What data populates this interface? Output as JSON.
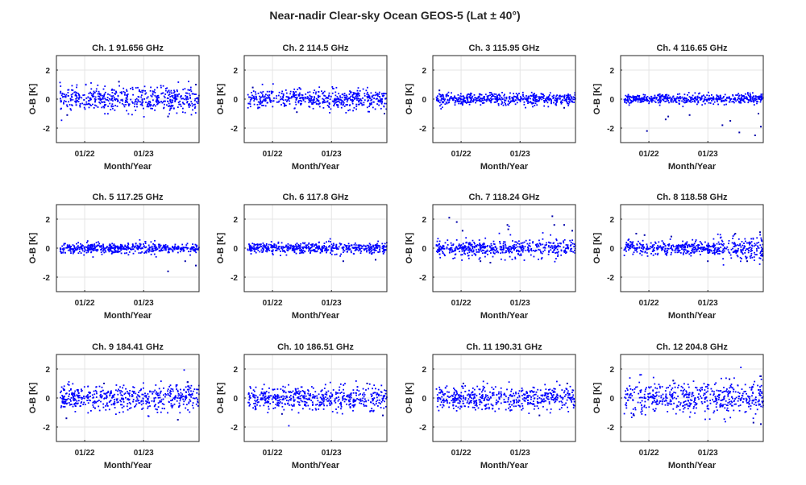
{
  "chart_data": {
    "type": "scatter",
    "title": "Near-nadir Clear-sky Ocean GEOS-5 (Lat ± 40°)",
    "layout": "3 rows x 4 columns",
    "marker_color": "#0000ff",
    "grid": true,
    "xlabel": "Month/Year",
    "ylabel": "O-B [K]",
    "xlim": [
      "2021-07-10",
      "2023-12-10"
    ],
    "ylim": [
      -3,
      3
    ],
    "xticks": [
      {
        "date": "2022-01-01",
        "label": "01/22"
      },
      {
        "date": "2023-01-01",
        "label": "01/23"
      }
    ],
    "yticks": [
      {
        "value": 2,
        "label": "2"
      },
      {
        "value": 0,
        "label": "0"
      },
      {
        "value": -2,
        "label": "-2"
      }
    ],
    "data_range": [
      "2021-08-01",
      "2023-12-10"
    ],
    "panels": [
      {
        "title": "Ch. 1 91.656 GHz",
        "std_K": 0.42,
        "mean_K": 0.0,
        "outliers": [
          [
            "2022-08-01",
            1.2
          ],
          [
            "2021-09-15",
            -1.1
          ],
          [
            "2023-06-01",
            -1.2
          ],
          [
            "2023-11-20",
            1.0
          ]
        ]
      },
      {
        "title": "Ch. 2 114.5 GHz",
        "std_K": 0.33,
        "mean_K": 0.0,
        "outliers": [
          [
            "2021-09-01",
            0.8
          ],
          [
            "2023-11-25",
            -1.0
          ],
          [
            "2022-06-01",
            -0.9
          ]
        ]
      },
      {
        "title": "Ch. 3 115.95 GHz",
        "std_K": 0.2,
        "mean_K": 0.0,
        "outliers": [
          [
            "2021-08-20",
            0.6
          ],
          [
            "2023-10-01",
            -0.6
          ]
        ]
      },
      {
        "title": "Ch. 4 116.65 GHz",
        "std_K": 0.17,
        "mean_K": 0.0,
        "outliers": [
          [
            "2021-12-20",
            -2.2
          ],
          [
            "2022-04-15",
            -1.4
          ],
          [
            "2022-05-01",
            -1.2
          ],
          [
            "2022-09-10",
            -1.1
          ],
          [
            "2023-04-01",
            -1.8
          ],
          [
            "2023-05-20",
            -1.5
          ],
          [
            "2023-07-15",
            -2.3
          ],
          [
            "2023-10-20",
            -2.5
          ],
          [
            "2023-11-25",
            -1.9
          ],
          [
            "2023-11-10",
            -1.0
          ]
        ]
      },
      {
        "title": "Ch. 5 117.25 GHz",
        "std_K": 0.18,
        "mean_K": 0.0,
        "outliers": [
          [
            "2023-06-01",
            -1.6
          ],
          [
            "2023-11-20",
            -1.2
          ],
          [
            "2023-09-15",
            -0.9
          ]
        ]
      },
      {
        "title": "Ch. 6 117.8 GHz",
        "std_K": 0.18,
        "mean_K": 0.0,
        "outliers": [
          [
            "2023-03-15",
            -0.9
          ],
          [
            "2023-10-01",
            -0.8
          ]
        ]
      },
      {
        "title": "Ch. 7 118.24 GHz",
        "std_K": 0.25,
        "mean_K": 0.0,
        "outliers": [
          [
            "2021-10-20",
            2.1
          ],
          [
            "2021-12-05",
            1.8
          ],
          [
            "2022-01-10",
            1.2
          ],
          [
            "2022-10-15",
            1.6
          ],
          [
            "2022-10-20",
            1.3
          ],
          [
            "2023-07-20",
            2.2
          ],
          [
            "2023-08-01",
            1.6
          ],
          [
            "2023-10-01",
            1.6
          ],
          [
            "2023-11-20",
            1.2
          ],
          [
            "2022-07-01",
            -1.0
          ],
          [
            "2022-05-01",
            -0.9
          ]
        ]
      },
      {
        "title": "Ch. 8 118.58 GHz",
        "std_K": 0.22,
        "mean_K": 0.0,
        "outliers": [
          [
            "2021-10-15",
            1.0
          ],
          [
            "2021-12-05",
            0.9
          ],
          [
            "2022-05-20",
            0.8
          ],
          [
            "2023-06-20",
            1.0
          ],
          [
            "2023-11-20",
            1.1
          ],
          [
            "2023-01-01",
            -0.9
          ],
          [
            "2023-09-01",
            -0.9
          ]
        ]
      },
      {
        "title": "Ch. 9 184.41 GHz",
        "std_K": 0.45,
        "mean_K": 0.0,
        "outliers": [
          [
            "2021-09-10",
            -1.4
          ],
          [
            "2022-05-01",
            1.0
          ],
          [
            "2023-08-01",
            -1.5
          ],
          [
            "2023-10-01",
            1.1
          ]
        ]
      },
      {
        "title": "Ch. 10 186.51 GHz",
        "std_K": 0.4,
        "mean_K": 0.0,
        "outliers": [
          [
            "2022-03-01",
            -1.1
          ],
          [
            "2023-08-10",
            1.0
          ],
          [
            "2023-11-15",
            -1.2
          ]
        ]
      },
      {
        "title": "Ch. 11 190.31 GHz",
        "std_K": 0.4,
        "mean_K": 0.0,
        "outliers": [
          [
            "2022-01-15",
            1.0
          ],
          [
            "2023-05-01",
            -1.2
          ],
          [
            "2023-10-20",
            1.0
          ]
        ]
      },
      {
        "title": "Ch. 12 204.8 GHz",
        "std_K": 0.55,
        "mean_K": 0.0,
        "outliers": [
          [
            "2022-06-01",
            1.2
          ],
          [
            "2023-05-15",
            1.3
          ],
          [
            "2023-11-25",
            1.5
          ],
          [
            "2023-10-10",
            -1.7
          ],
          [
            "2023-11-25",
            -1.8
          ],
          [
            "2021-10-01",
            -1.2
          ]
        ]
      }
    ]
  }
}
